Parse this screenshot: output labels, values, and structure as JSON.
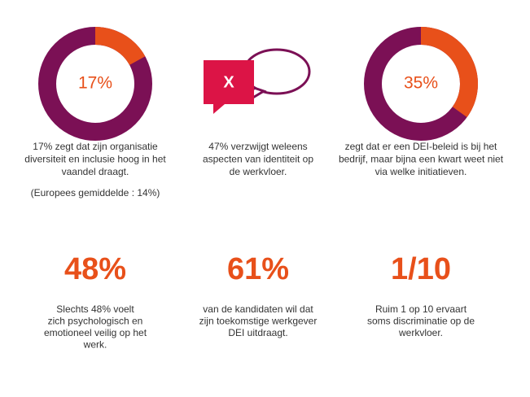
{
  "items": [
    {
      "value": 17,
      "value_label": "17%",
      "lines": [
        "17% zegt dat zijn organisatie",
        "diversiteit en inclusie hoog in het",
        "vaandel draagt."
      ],
      "note": "(Europees gemiddelde : 14%)"
    },
    {
      "icon_label": "X",
      "lines": [
        "47% verzwijgt weleens",
        "aspecten van identiteit op",
        "de werkvloer."
      ]
    },
    {
      "value": 35,
      "value_label": "35%",
      "lines": [
        "zegt dat er een DEI-beleid is bij het",
        "bedrijf, maar bijna een kwart weet niet",
        "via welke initiatieven."
      ]
    },
    {
      "stat": "48%",
      "lines": [
        "Slechts 48% voelt",
        "zich psychologisch en",
        "emotioneel veilig op het",
        "werk."
      ]
    },
    {
      "stat": "61%",
      "lines": [
        "van de kandidaten wil dat",
        "zijn toekomstige werkgever",
        "DEI uitdraagt."
      ]
    },
    {
      "stat": "1/10",
      "lines": [
        "Ruim 1 op 10 ervaart",
        "soms discriminatie op de",
        "werkvloer."
      ]
    }
  ]
}
